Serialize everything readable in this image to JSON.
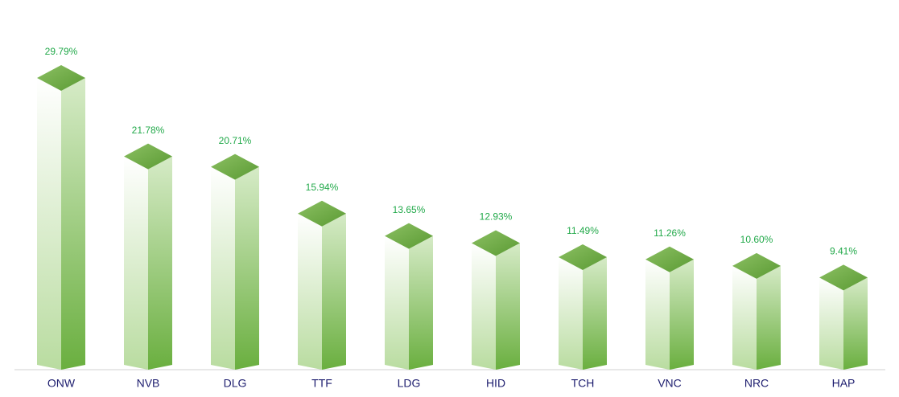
{
  "chart_data": {
    "type": "bar3d",
    "categories": [
      "ONW",
      "NVB",
      "DLG",
      "TTF",
      "LDG",
      "HID",
      "TCH",
      "VNC",
      "NRC",
      "HAP"
    ],
    "values": [
      29.79,
      21.78,
      20.71,
      15.94,
      13.65,
      12.93,
      11.49,
      11.26,
      10.6,
      9.41
    ],
    "value_labels": [
      "29.79%",
      "21.78%",
      "20.71%",
      "15.94%",
      "13.65%",
      "12.93%",
      "11.49%",
      "11.26%",
      "10.60%",
      "9.41%"
    ],
    "color": "#6aaf3f",
    "value_label_color": "#22a94a",
    "category_color": "#1c1c6e"
  }
}
